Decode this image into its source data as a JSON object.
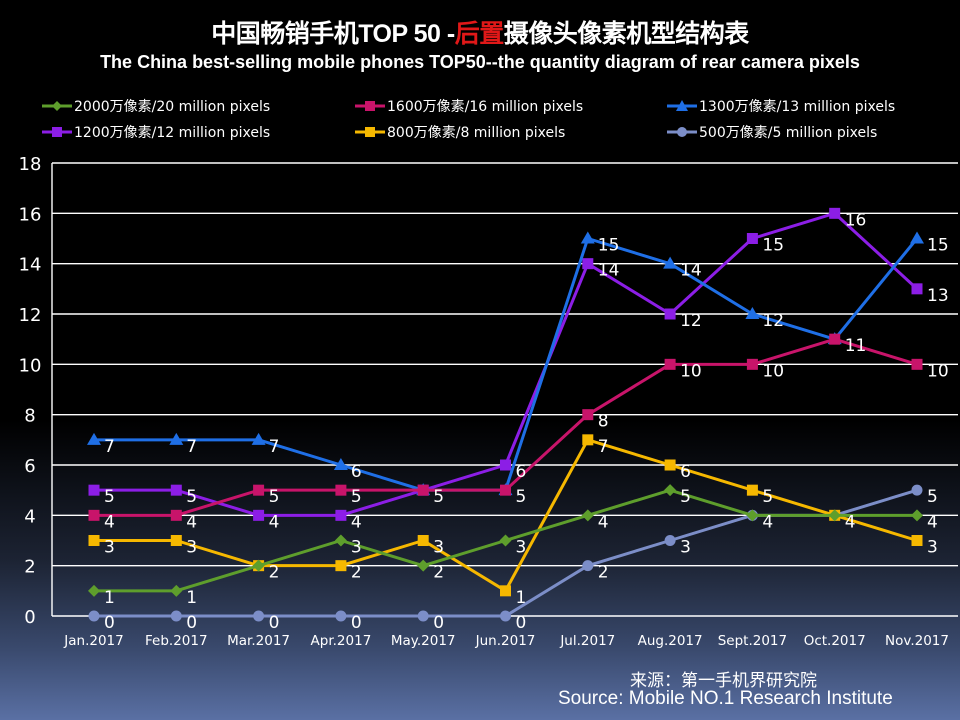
{
  "header": {
    "title_part1": "中国畅销手机TOP 50 -",
    "title_highlight": "后置",
    "title_part2": "摄像头像素机型结构表",
    "subtitle": "The China best-selling mobile phones TOP50--the quantity diagram of rear camera pixels"
  },
  "source": {
    "cn": "来源：第一手机界研究院",
    "en": "Source: Mobile NO.1 Research Institute"
  },
  "chart_data": {
    "type": "line",
    "title": "中国畅销手机TOP 50 -后置摄像头像素机型结构表",
    "subtitle": "The China best-selling mobile phones TOP50--the quantity diagram of rear camera pixels",
    "xlabel": "",
    "ylabel": "",
    "ylim": [
      0,
      18
    ],
    "yticks": [
      "0",
      "2",
      "4",
      "6",
      "8",
      "10",
      "12",
      "14",
      "16",
      "18"
    ],
    "grid": true,
    "legend_position": "top",
    "categories": [
      "Jan.2017",
      "Feb.2017",
      "Mar.2017",
      "Apr.2017",
      "May.2017",
      "Jun.2017",
      "Jul.2017",
      "Aug.2017",
      "Sept.2017",
      "Oct.2017",
      "Nov.2017"
    ],
    "series": [
      {
        "name": "2000万像素/20 million pixels",
        "color": "#5e9e2c",
        "marker": "diamond",
        "values": [
          1,
          1,
          2,
          3,
          2,
          3,
          4,
          5,
          4,
          4,
          4
        ],
        "labels_shown": [
          true,
          true,
          false,
          true,
          true,
          true,
          true,
          true,
          false,
          false,
          true
        ]
      },
      {
        "name": "1600万像素/16 million pixels",
        "color": "#c8146a",
        "marker": "square",
        "values": [
          4,
          4,
          5,
          5,
          5,
          5,
          8,
          10,
          10,
          11,
          10
        ],
        "labels_shown": [
          true,
          true,
          true,
          true,
          false,
          false,
          true,
          true,
          true,
          false,
          true
        ]
      },
      {
        "name": "1300万像素/13 million pixels",
        "color": "#1f6fe6",
        "marker": "triangle",
        "values": [
          7,
          7,
          7,
          6,
          5,
          5,
          15,
          14,
          12,
          11,
          15
        ],
        "labels_shown": [
          true,
          true,
          true,
          true,
          false,
          true,
          true,
          true,
          true,
          true,
          true
        ]
      },
      {
        "name": "1200万像素/12 million pixels",
        "color": "#8c1ee6",
        "marker": "square",
        "values": [
          5,
          5,
          4,
          4,
          5,
          6,
          14,
          12,
          15,
          16,
          13
        ],
        "labels_shown": [
          true,
          true,
          true,
          true,
          true,
          true,
          true,
          true,
          true,
          true,
          true
        ]
      },
      {
        "name": "800万像素/8 million pixels",
        "color": "#f6b800",
        "marker": "square",
        "values": [
          3,
          3,
          2,
          2,
          3,
          1,
          7,
          6,
          5,
          4,
          3
        ],
        "labels_shown": [
          true,
          true,
          true,
          true,
          true,
          true,
          true,
          true,
          true,
          true,
          true
        ]
      },
      {
        "name": "500万像素/5 million pixels",
        "color": "#7c8ec8",
        "marker": "circle",
        "values": [
          0,
          0,
          0,
          0,
          0,
          0,
          2,
          3,
          4,
          4,
          5
        ],
        "labels_shown": [
          true,
          true,
          true,
          true,
          true,
          true,
          true,
          true,
          true,
          false,
          true
        ]
      }
    ]
  }
}
